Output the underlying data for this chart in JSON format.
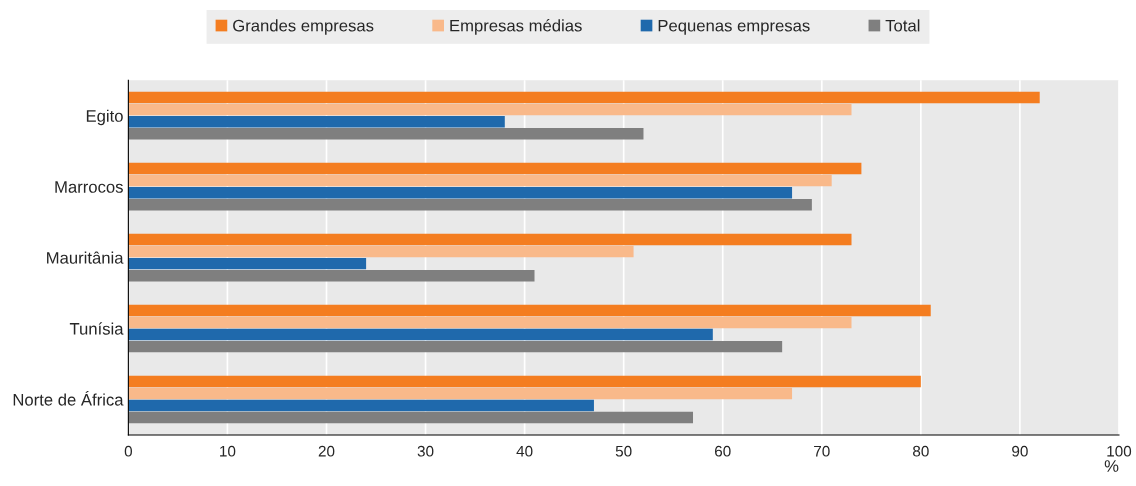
{
  "chart_data": {
    "type": "bar",
    "orientation": "horizontal",
    "xlabel": "%",
    "categories": [
      "Egito",
      "Marrocos",
      "Mauritânia",
      "Tunísia",
      "Norte de África"
    ],
    "series": [
      {
        "name": "Grandes empresas",
        "color": "#f47d20",
        "values": [
          92,
          74,
          73,
          81,
          80
        ]
      },
      {
        "name": "Empresas médias",
        "color": "#f9b98a",
        "values": [
          73,
          71,
          51,
          73,
          67
        ]
      },
      {
        "name": "Pequenas empresas",
        "color": "#1f69ac",
        "values": [
          38,
          67,
          24,
          59,
          47
        ]
      },
      {
        "name": "Total",
        "color": "#7f7f7f",
        "values": [
          52,
          69,
          41,
          66,
          57
        ]
      }
    ],
    "xlim": [
      0,
      100
    ],
    "xticks": [
      0,
      10,
      20,
      30,
      40,
      50,
      60,
      70,
      80,
      90,
      100
    ],
    "grid": "x",
    "legend": "top"
  }
}
